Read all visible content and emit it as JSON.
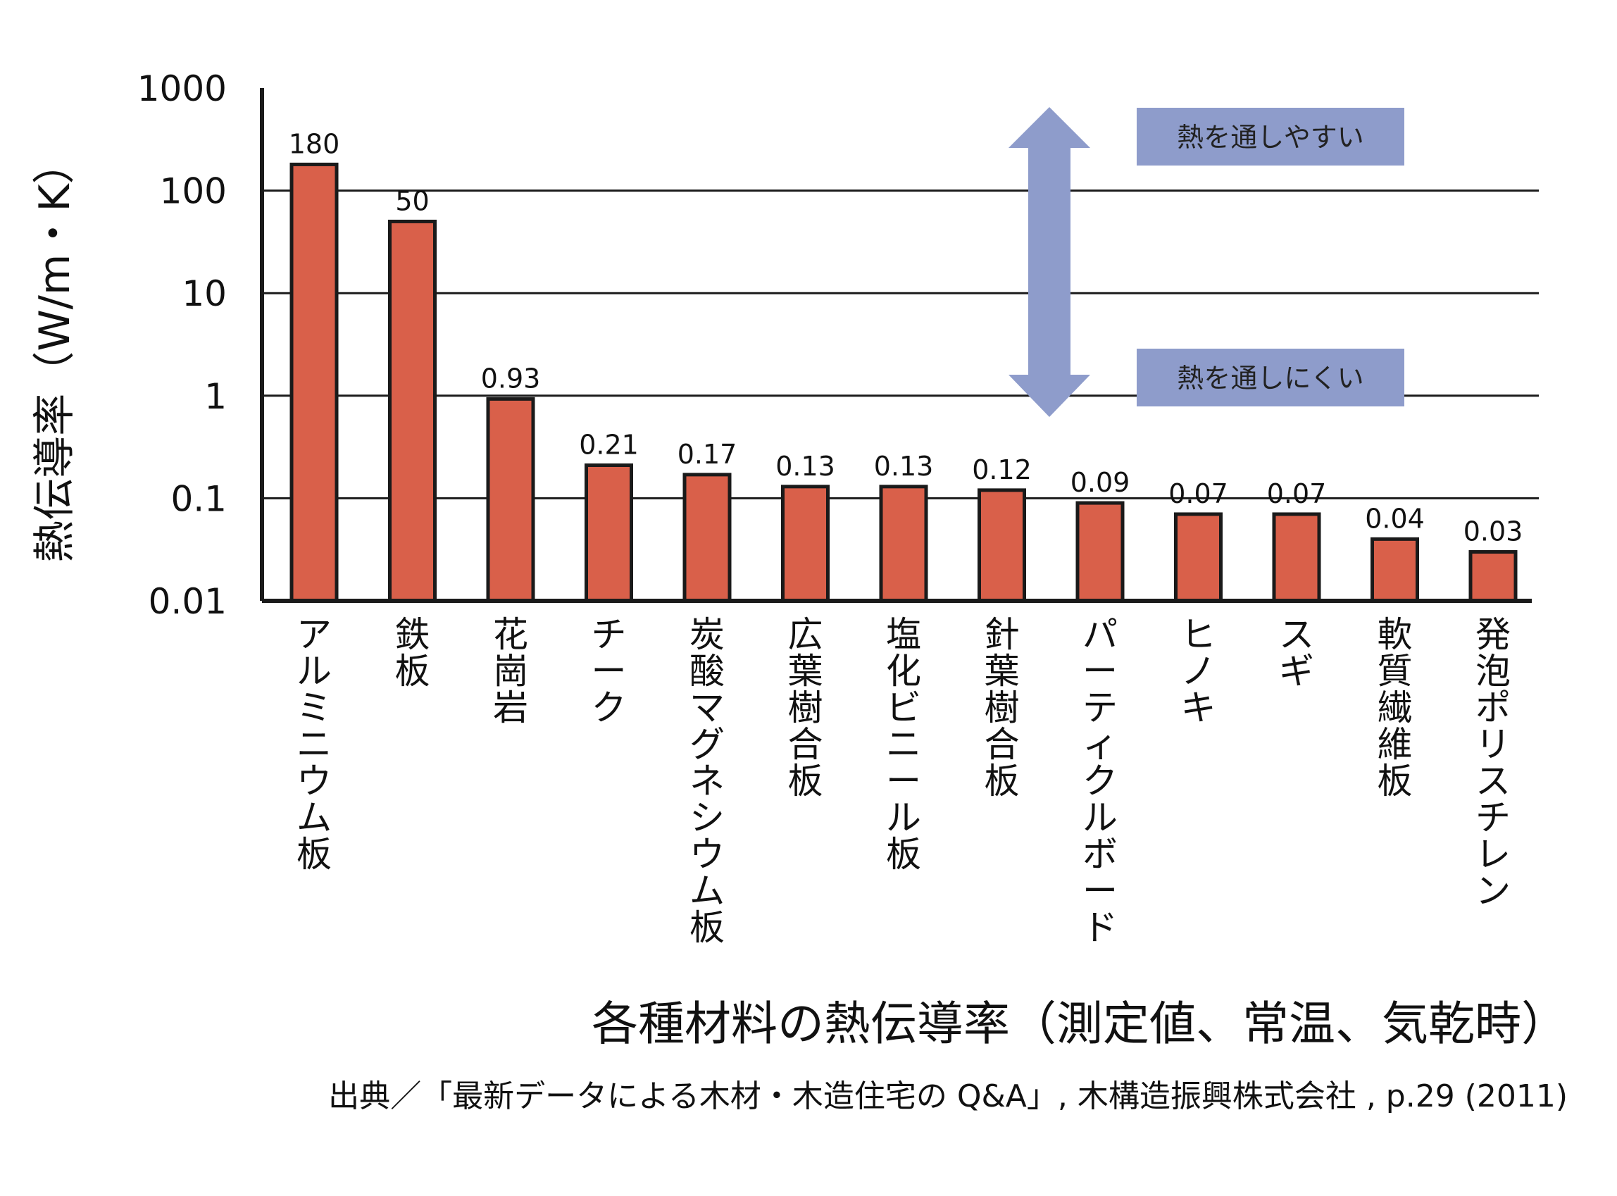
{
  "chart_data": {
    "type": "bar",
    "yscale": "log",
    "ylim": [
      0.01,
      1000
    ],
    "ylabel": "熱伝導率（W/m・K）",
    "xlabel": "",
    "yticks": [
      "1000",
      "100",
      "10",
      "1",
      "0.1",
      "0.01"
    ],
    "yticks_values": [
      1000,
      100,
      10,
      1,
      0.1,
      0.01
    ],
    "grid": "horizontal",
    "categories": [
      "アルミニウム板",
      "鉄板",
      "花崗岩",
      "チーク",
      "炭酸マグネシウム板",
      "広葉樹合板",
      "塩化ビニール板",
      "針葉樹合板",
      "パーティクルボード",
      "ヒノキ",
      "スギ",
      "軟質繊維板",
      "発泡ポリスチレン"
    ],
    "values": [
      180,
      50,
      0.93,
      0.21,
      0.17,
      0.13,
      0.13,
      0.12,
      0.09,
      0.07,
      0.07,
      0.04,
      0.03
    ],
    "value_labels": [
      "180",
      "50",
      "0.93",
      "0.21",
      "0.17",
      "0.13",
      "0.13",
      "0.12",
      "0.09",
      "0.07",
      "0.07",
      "0.04",
      "0.03"
    ],
    "bar_color": "#d9604a",
    "annotations": {
      "top": "熱を通しやすい",
      "bottom": "熱を通しにくい",
      "color": "#8e9ccb"
    },
    "title": "各種材料の熱伝導率（測定値、常温、気乾時）",
    "source": "出典／「最新データによる木材・木造住宅の Q&A」, 木構造振興株式会社 , p.29 (2011)"
  }
}
